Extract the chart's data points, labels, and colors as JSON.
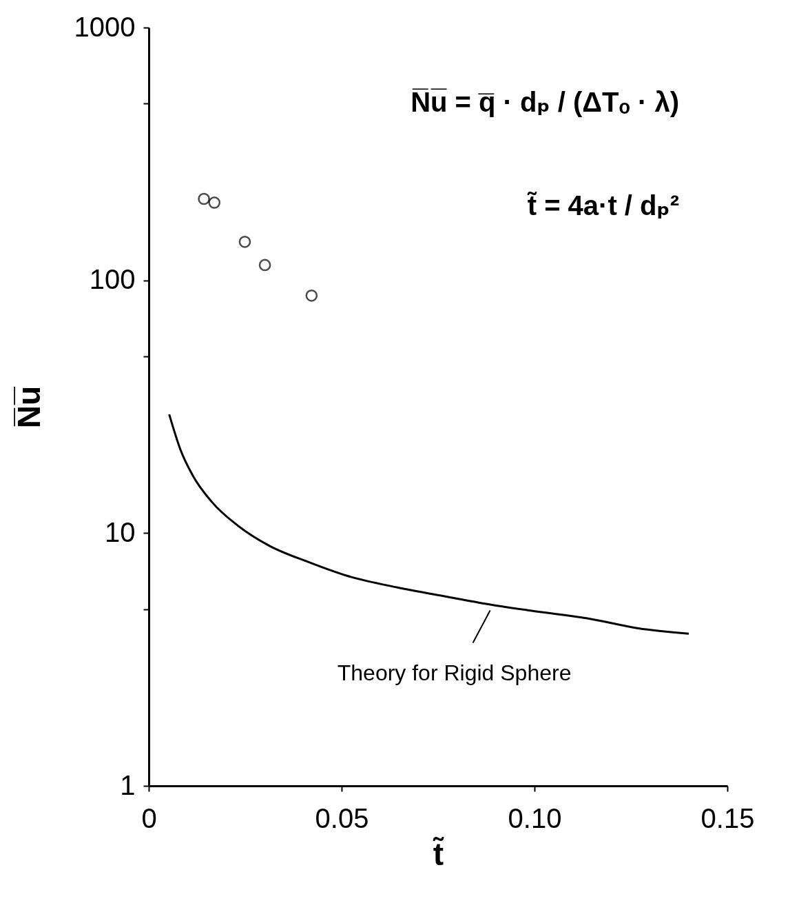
{
  "chart_data": {
    "type": "scatter",
    "xlabel": "t̃",
    "ylabel": "N̅u̅",
    "log": true,
    "xlim": [
      0,
      0.15
    ],
    "xticks": [
      0,
      0.05,
      {
        "value": 0.1,
        "label": "0.10"
      },
      0.15
    ],
    "ylim": [
      1,
      1000
    ],
    "yticks": [
      1,
      {
        "value": 5,
        "label": null
      },
      10,
      {
        "value": 50,
        "label": null
      },
      100,
      {
        "value": 500,
        "label": null
      },
      1000
    ],
    "series": [
      {
        "marker": "circle",
        "color": "#000000",
        "x": [
          0.0143,
          0.017,
          0.0249,
          0.0301,
          0.0422
        ],
        "values": [
          210,
          203,
          142,
          115,
          87
        ]
      },
      {
        "type": "line",
        "color": "#000000",
        "x": [
          0.0053,
          0.0082,
          0.0115,
          0.0165,
          0.0231,
          0.0313,
          0.0412,
          0.0511,
          0.0643,
          0.0774,
          0.089,
          0.1005,
          0.1137,
          0.1269,
          0.14
        ],
        "values": [
          29.5,
          21.4,
          16.8,
          13.2,
          10.7,
          8.9,
          7.7,
          6.8,
          6.1,
          5.6,
          5.2,
          4.9,
          4.6,
          4.2,
          4.0
        ]
      }
    ],
    "annotations": [
      "N̅u̅ = q̅ · dₚ / (ΔTₒ · λ)",
      "t̃ = 4a·t / dₚ²",
      {
        "text": "Theory for Rigid Sphere",
        "x": 0.0885,
        "y": 5.2
      }
    ]
  }
}
